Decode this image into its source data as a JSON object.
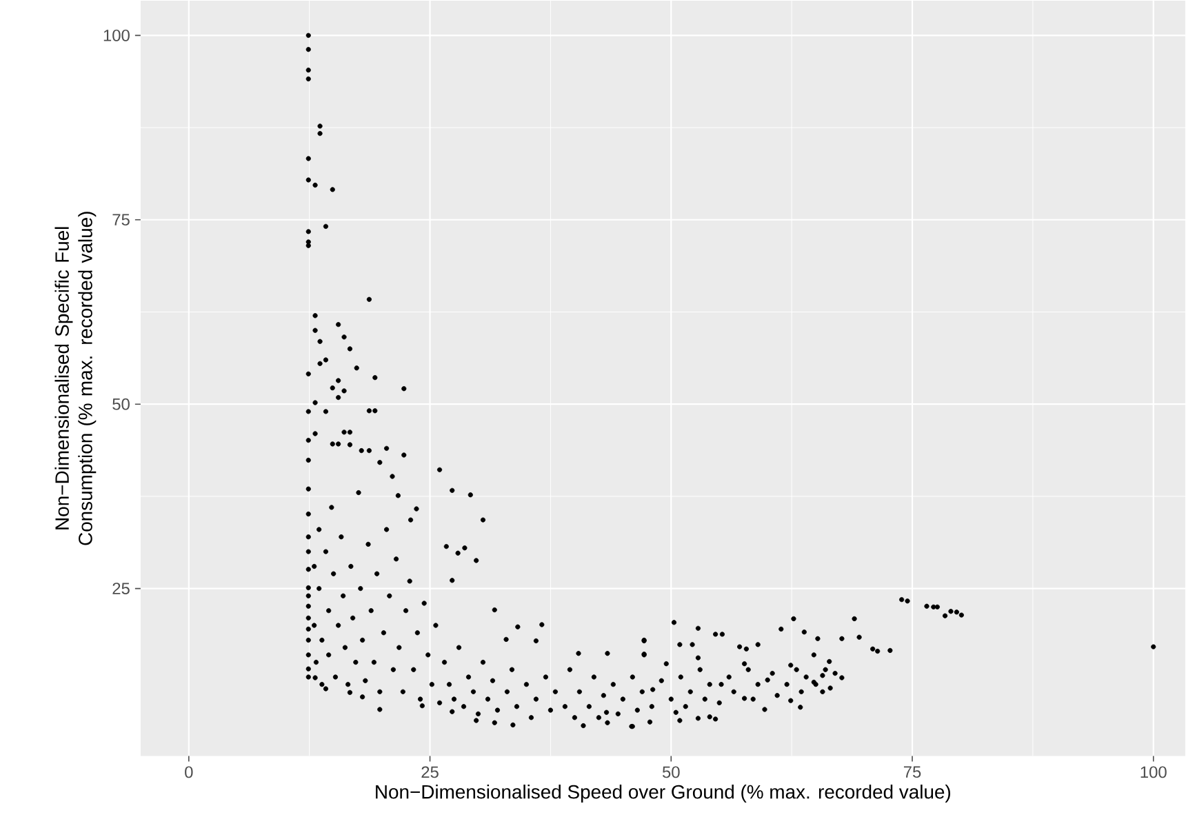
{
  "chart_data": {
    "type": "scatter",
    "xlabel": "Non−Dimensionalised Speed over Ground (% max. recorded value)",
    "ylabel": "Non−Dimensionalised Specific Fuel Consumption (% max. recorded value)",
    "xlim": [
      -5,
      103.3
    ],
    "ylim": [
      2.3,
      104.7
    ],
    "xticks": [
      0,
      25,
      50,
      75,
      100
    ],
    "yticks": [
      25,
      50,
      75,
      100
    ],
    "grid": true,
    "marker": "circle",
    "color": "#000000",
    "x": [
      12.4,
      12.4,
      12.4,
      12.4,
      13.6,
      13.6,
      12.4,
      12.4,
      13.1,
      14.9,
      14.2,
      12.4,
      12.4,
      12.4,
      18.7,
      13.1,
      15.5,
      13.1,
      16.1,
      13.6,
      16.7,
      14.2,
      13.6,
      17.4,
      12.4,
      19.3,
      15.5,
      14.9,
      22.3,
      16.1,
      15.5,
      13.1,
      12.4,
      14.2,
      18.7,
      19.3,
      12.4,
      13.1,
      16.1,
      16.7,
      15.5,
      14.9,
      16.7,
      17.9,
      18.7,
      20.5,
      22.3,
      26.0,
      27.3,
      29.2,
      30.5,
      29.8,
      28.6,
      27.9,
      26.7,
      27.3,
      23.6,
      23.0,
      21.7,
      21.1,
      19.8,
      12.4,
      12.4,
      12.4,
      12.4,
      12.4,
      12.4,
      12.4,
      12.4,
      12.4,
      13.1,
      14.2,
      16.7,
      18.0,
      19.8,
      24.2,
      27.3,
      29.8,
      31.7,
      33.6,
      40.9,
      43.4,
      45.9,
      31.7,
      34.1,
      36.6,
      36.0,
      32.9,
      40.4,
      43.4,
      47.2,
      47.2,
      50.3,
      52.8,
      54.6,
      55.3,
      47.2,
      47.2,
      50.9,
      52.2,
      57.1,
      57.8,
      59.0,
      62.7,
      61.4,
      63.8,
      65.2,
      64.8,
      66.4,
      67.7,
      69.0,
      69.5,
      70.9,
      71.4,
      72.7,
      73.9,
      74.5,
      76.5,
      77.2,
      77.6,
      78.4,
      79.0,
      79.6,
      80.1,
      100.0,
      67.7,
      67.0,
      63.4,
      59.7,
      54.6,
      54.0,
      52.8,
      50.9,
      46.0,
      47.8,
      49.5,
      52.8,
      57.6,
      62.4,
      65.7,
      43.3,
      50.5,
      57.6,
      62.4,
      65.7,
      48.1,
      55.2,
      60.0,
      64.8,
      12.4,
      12.4,
      12.4,
      12.4,
      12.4,
      12.4,
      13.0,
      13.0,
      13.2,
      13.5,
      13.5,
      13.8,
      13.8,
      14.2,
      14.5,
      14.5,
      14.8,
      15.0,
      15.2,
      15.5,
      15.8,
      16.0,
      16.2,
      16.5,
      16.8,
      17.0,
      17.3,
      17.6,
      17.8,
      18.0,
      18.3,
      18.6,
      18.9,
      19.2,
      19.5,
      19.8,
      20.2,
      20.5,
      20.8,
      21.2,
      21.5,
      21.8,
      22.2,
      22.5,
      22.9,
      23.3,
      23.7,
      24.0,
      24.4,
      24.8,
      25.2,
      25.6,
      26.0,
      26.5,
      27.0,
      27.5,
      28.0,
      28.5,
      29.0,
      29.5,
      30.0,
      30.5,
      31.0,
      31.5,
      32.0,
      33.0,
      33.5,
      34.0,
      35.0,
      35.5,
      36.0,
      37.0,
      37.5,
      38.0,
      39.0,
      39.5,
      40.0,
      40.5,
      41.5,
      42.0,
      42.5,
      43.0,
      44.0,
      44.5,
      45.0,
      46.0,
      46.5,
      47.0,
      48.0,
      49.0,
      50.0,
      51.0,
      51.5,
      52.0,
      53.0,
      53.5,
      54.0,
      55.0,
      56.0,
      56.5,
      58.0,
      58.5,
      59.0,
      60.5,
      61.0,
      62.0,
      63.0,
      63.5,
      64.0,
      65.0,
      66.0,
      66.5
    ],
    "values": [
      100.0,
      98.1,
      95.3,
      94.1,
      87.7,
      86.7,
      83.3,
      80.4,
      79.7,
      79.1,
      74.1,
      73.4,
      72.0,
      71.5,
      64.2,
      62.0,
      60.8,
      60.0,
      59.1,
      58.5,
      57.5,
      56.0,
      55.5,
      54.9,
      54.1,
      53.6,
      53.2,
      52.2,
      52.1,
      51.8,
      50.9,
      50.2,
      49.0,
      49.0,
      49.1,
      49.1,
      45.1,
      46.0,
      46.2,
      46.2,
      44.6,
      44.6,
      44.5,
      43.7,
      43.7,
      44.0,
      43.1,
      41.1,
      38.3,
      37.7,
      34.3,
      28.8,
      30.5,
      29.8,
      30.7,
      26.1,
      35.8,
      34.3,
      37.6,
      40.2,
      42.1,
      42.4,
      38.5,
      35.1,
      32.0,
      27.6,
      25.1,
      22.6,
      19.5,
      14.1,
      12.9,
      11.4,
      10.9,
      10.3,
      8.6,
      9.1,
      8.3,
      7.1,
      6.8,
      6.5,
      6.4,
      6.8,
      6.3,
      22.1,
      19.8,
      20.1,
      17.9,
      18.1,
      16.2,
      16.2,
      17.9,
      16.0,
      20.4,
      19.6,
      18.8,
      18.8,
      18.0,
      16.1,
      17.4,
      17.4,
      17.1,
      16.8,
      17.4,
      20.9,
      19.5,
      19.1,
      18.2,
      16.0,
      15.1,
      18.2,
      20.9,
      18.4,
      16.8,
      16.5,
      16.6,
      23.5,
      23.3,
      22.6,
      22.5,
      22.5,
      21.3,
      21.9,
      21.8,
      21.4,
      17.1,
      12.9,
      13.5,
      8.9,
      8.6,
      7.3,
      7.6,
      7.4,
      7.1,
      6.3,
      6.9,
      14.8,
      15.6,
      14.8,
      14.6,
      13.2,
      8.2,
      8.2,
      10.1,
      9.8,
      11.0,
      11.3,
      12.0,
      12.6,
      12.3,
      30,
      24,
      21,
      18,
      16,
      13,
      28,
      20,
      15,
      33,
      25,
      18,
      12,
      30,
      22,
      16,
      36,
      27,
      13,
      20,
      32,
      24,
      17,
      12,
      28,
      21,
      15,
      38,
      25,
      18,
      12.5,
      31,
      22,
      15,
      27,
      11,
      19,
      33,
      24,
      14,
      29,
      17,
      11,
      22,
      26,
      14,
      19,
      10,
      23,
      16,
      12,
      20,
      9.5,
      15,
      12,
      10,
      17,
      9,
      13,
      11,
      8,
      15,
      10,
      12.5,
      8.5,
      11,
      14,
      9,
      12,
      7.5,
      10,
      13,
      8.5,
      11,
      9,
      14,
      7.5,
      11,
      9,
      13,
      7.5,
      10.5,
      12,
      8,
      10,
      13,
      8.5,
      11,
      9,
      12.5,
      10,
      13,
      9,
      11,
      14,
      10,
      12,
      9.5,
      13,
      11,
      14,
      10,
      12,
      13.5,
      10.5,
      12,
      14,
      11,
      13,
      12,
      14,
      11.5
    ]
  }
}
